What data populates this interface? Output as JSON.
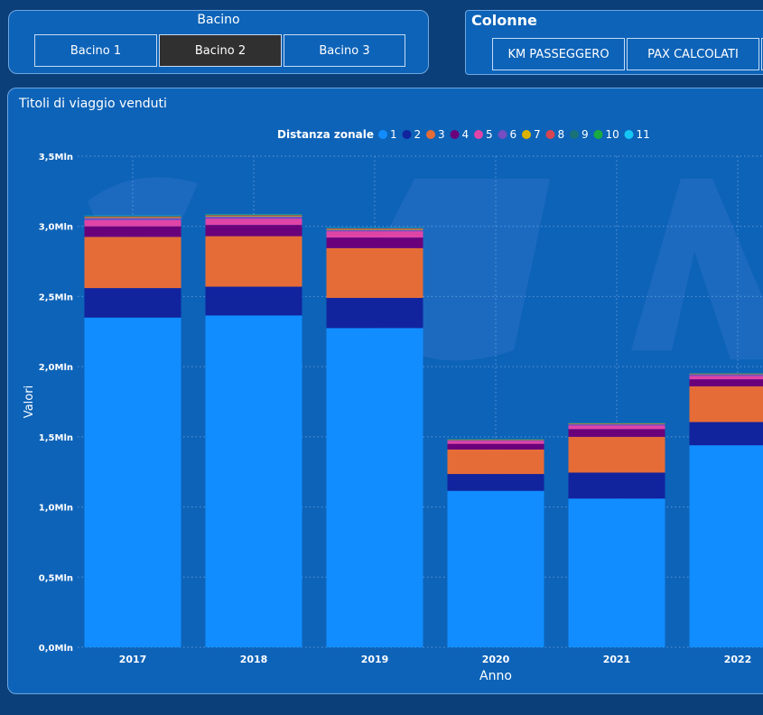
{
  "colors": {
    "background": "#0b3f7a",
    "panel": "#0d63b8",
    "selected": "#303030",
    "series": [
      "#118dff",
      "#12239e",
      "#e66c37",
      "#6b007b",
      "#e044a7",
      "#744ec2",
      "#d9b300",
      "#d64550",
      "#197278",
      "#1aab40",
      "#15c6f4"
    ]
  },
  "bacino": {
    "title": "Bacino",
    "buttons": [
      "Bacino 1",
      "Bacino 2",
      "Bacino 3"
    ],
    "selected": "Bacino 2"
  },
  "colonne": {
    "title": "Colonne",
    "buttons": [
      "KM PASSEGGERO",
      "PAX CALCOLATI"
    ]
  },
  "chart_data": {
    "type": "bar",
    "stacked": true,
    "title": "Titoli di viaggio venduti",
    "legend_title": "Distanza zonale",
    "legend_position": "top",
    "xlabel": "Anno",
    "ylabel": "Valori",
    "ylim": [
      0,
      3500000
    ],
    "yticks": [
      0,
      500000,
      1000000,
      1500000,
      2000000,
      2500000,
      3000000,
      3500000
    ],
    "ytick_labels": [
      "0,0Mln",
      "0,5Mln",
      "1,0Mln",
      "1,5Mln",
      "2,0Mln",
      "2,5Mln",
      "3,0Mln",
      "3,5Mln"
    ],
    "grid": true,
    "categories": [
      "2017",
      "2018",
      "2019",
      "2020",
      "2021",
      "2022"
    ],
    "series": [
      {
        "name": "1",
        "values": [
          2350000,
          2365000,
          2275000,
          1115000,
          1060000,
          1440000
        ]
      },
      {
        "name": "2",
        "values": [
          210000,
          205000,
          215000,
          120000,
          185000,
          165000
        ]
      },
      {
        "name": "3",
        "values": [
          365000,
          360000,
          355000,
          175000,
          255000,
          255000
        ]
      },
      {
        "name": "4",
        "values": [
          75000,
          80000,
          75000,
          40000,
          55000,
          50000
        ]
      },
      {
        "name": "5",
        "values": [
          45000,
          45000,
          45000,
          20000,
          25000,
          25000
        ]
      },
      {
        "name": "6",
        "values": [
          15000,
          15000,
          10000,
          5000,
          10000,
          10000
        ]
      },
      {
        "name": "7",
        "values": [
          5000,
          5000,
          5000,
          3000,
          3000,
          3000
        ]
      },
      {
        "name": "8",
        "values": [
          5000,
          5000,
          5000,
          3000,
          3000,
          3000
        ]
      },
      {
        "name": "9",
        "values": [
          3000,
          3000,
          3000,
          2000,
          2000,
          2000
        ]
      },
      {
        "name": "10",
        "values": [
          2000,
          2000,
          2000,
          1000,
          1000,
          1000
        ]
      },
      {
        "name": "11",
        "values": [
          2000,
          2000,
          2000,
          1000,
          1000,
          1000
        ]
      }
    ]
  }
}
